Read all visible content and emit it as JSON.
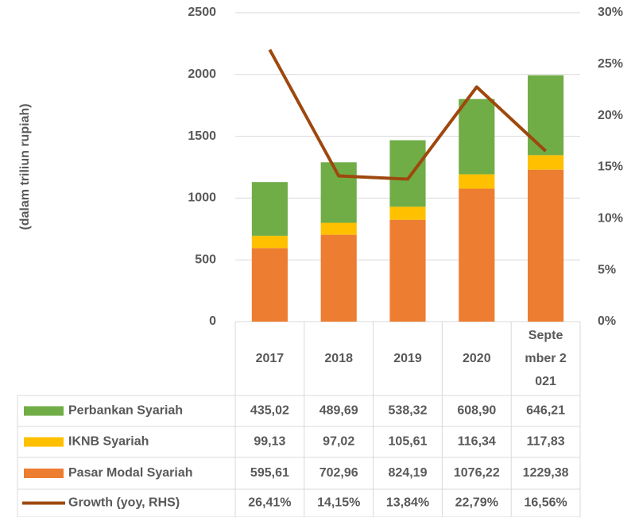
{
  "chart_data": {
    "type": "bar",
    "y_label": "(dalam triliun rupiah)",
    "categories": [
      "2017",
      "2018",
      "2019",
      "2020",
      "September 2021"
    ],
    "stacked": true,
    "series": [
      {
        "name": "Perbankan Syariah",
        "color": "#70ad47",
        "values": [
          435.02,
          489.69,
          538.32,
          608.9,
          646.21
        ],
        "value_labels": [
          "435,02",
          "489,69",
          "538,32",
          "608,90",
          "646,21"
        ]
      },
      {
        "name": "IKNB Syariah",
        "color": "#ffc000",
        "values": [
          99.13,
          97.02,
          105.61,
          116.34,
          117.83
        ],
        "value_labels": [
          "99,13",
          "97,02",
          "105,61",
          "116,34",
          "117,83"
        ]
      },
      {
        "name": "Pasar Modal Syariah",
        "color": "#ed7d31",
        "values": [
          595.61,
          702.96,
          824.19,
          1076.22,
          1229.38
        ],
        "value_labels": [
          "595,61",
          "702,96",
          "824,19",
          "1076,22",
          "1229,38"
        ]
      },
      {
        "name": "Growth (yoy, RHS)",
        "color": "#9e480e",
        "type": "line",
        "axis": "y2",
        "values": [
          26.41,
          14.15,
          13.84,
          22.79,
          16.56
        ],
        "value_labels": [
          "26,41%",
          "14,15%",
          "13,84%",
          "22,79%",
          "16,56%"
        ]
      }
    ],
    "ylim": [
      0,
      2500
    ],
    "yticks": [
      0,
      500,
      1000,
      1500,
      2000,
      2500
    ],
    "y2lim": [
      0,
      30
    ],
    "y2ticks": [
      {
        "value": 0,
        "label": "0%"
      },
      {
        "value": 5,
        "label": "5%"
      },
      {
        "value": 10,
        "label": "10%"
      },
      {
        "value": 15,
        "label": "15%"
      },
      {
        "value": 20,
        "label": "20%"
      },
      {
        "value": 25,
        "label": "25%"
      },
      {
        "value": 30,
        "label": "30%"
      }
    ],
    "grid": true
  }
}
